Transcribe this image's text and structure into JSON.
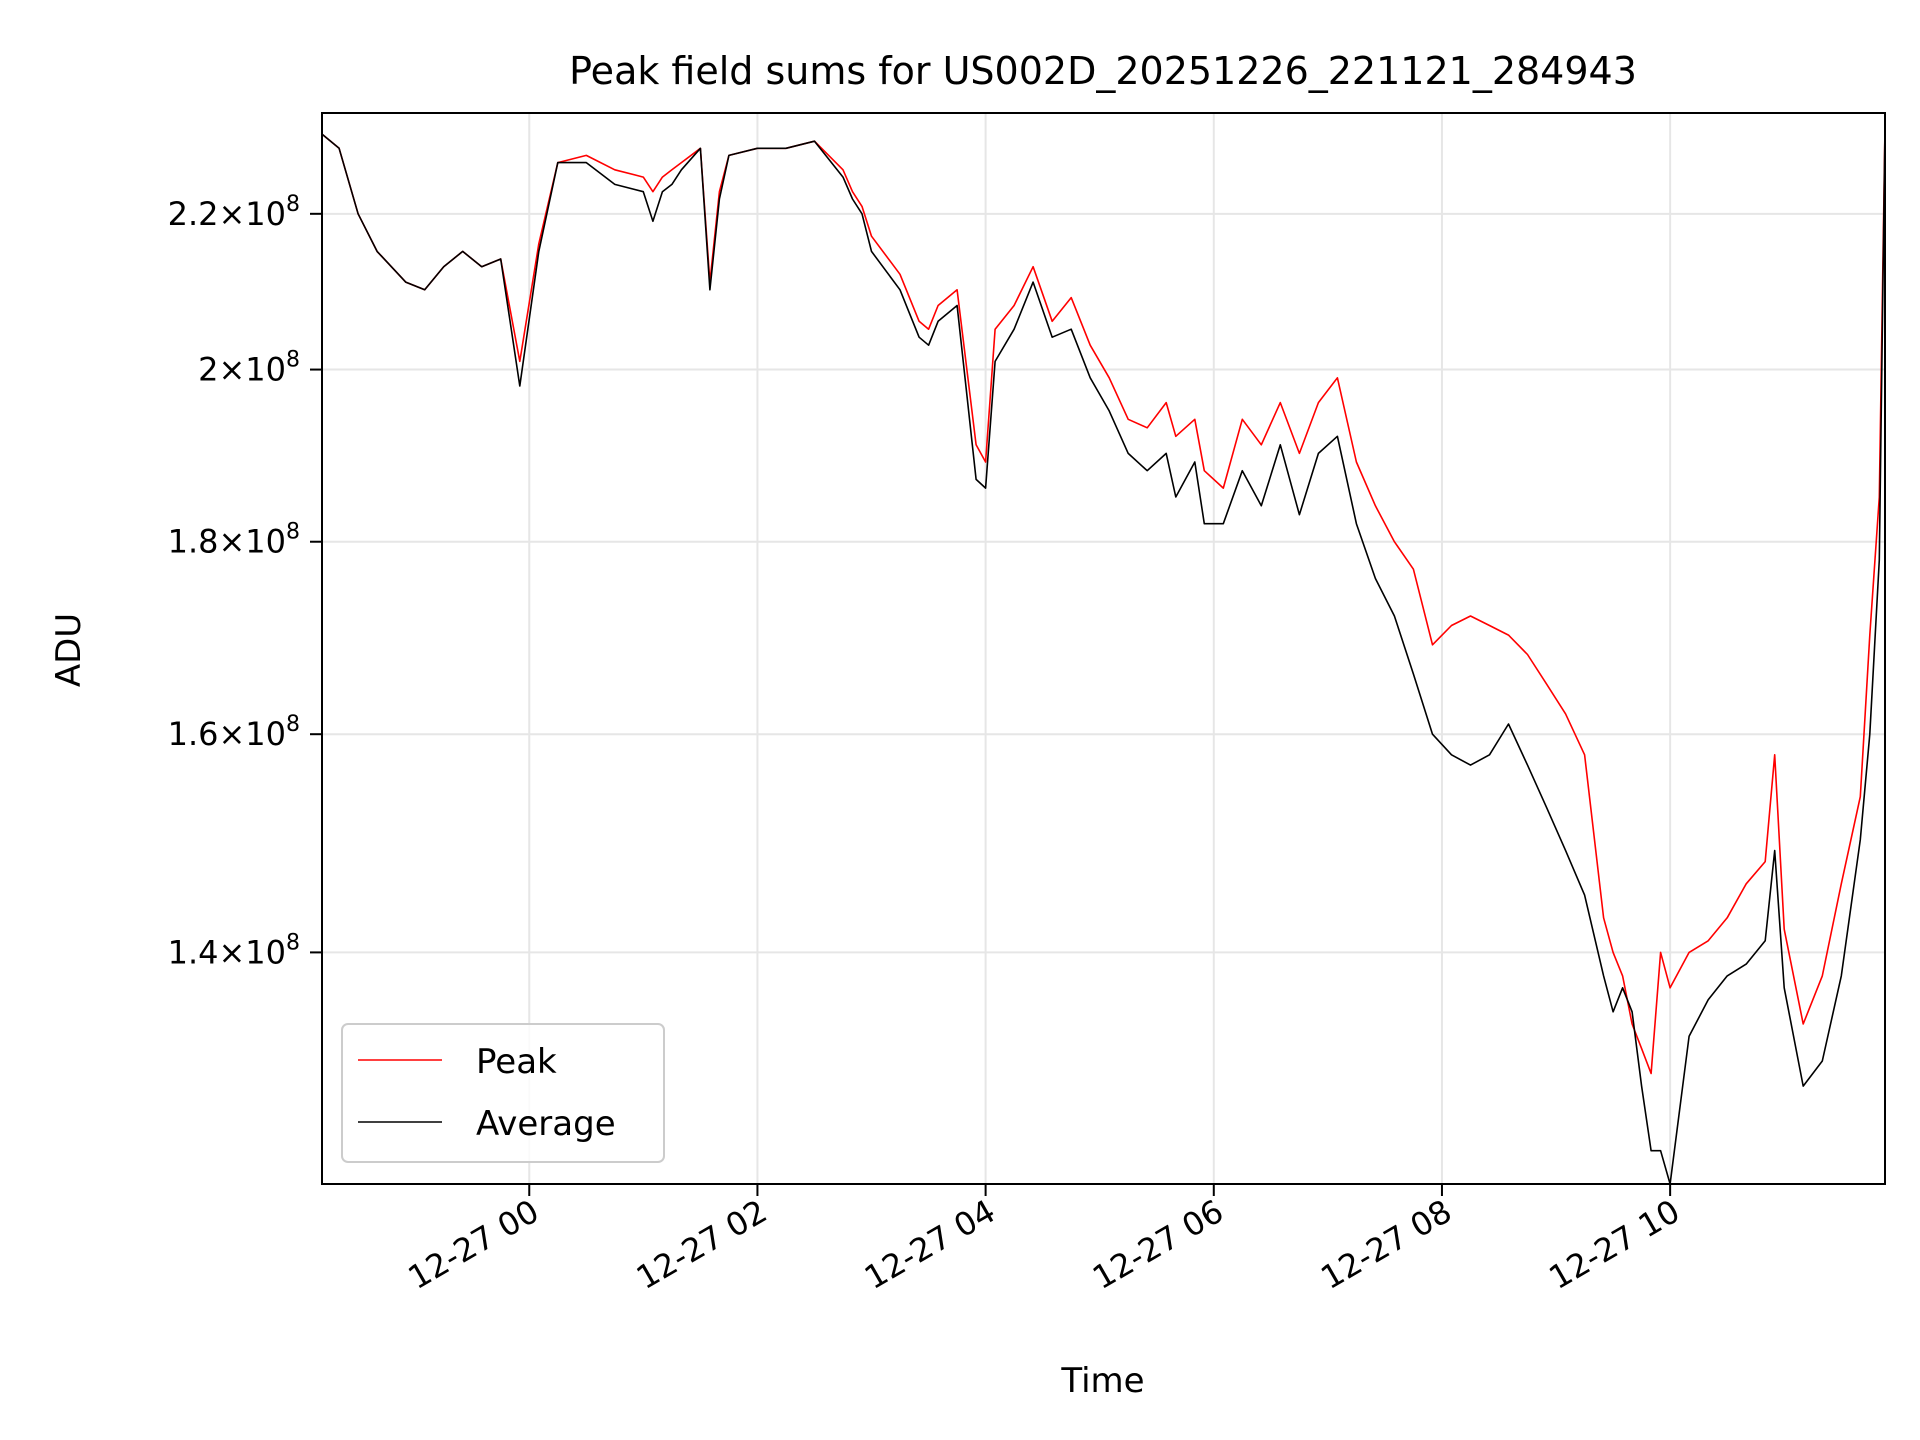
{
  "chart_data": {
    "type": "line",
    "title": "Peak field sums for US002D_20251226_221121_284943",
    "xlabel": "Time",
    "ylabel": "ADU",
    "yscale": "log",
    "grid": true,
    "legend_position": "lower-left",
    "xlim": [
      "2025-12-26 22:11",
      "2025-12-27 11:53"
    ],
    "ylim": [
      121500000,
      234000000
    ],
    "x_ticks": [
      {
        "value": "2025-12-27 00:00",
        "label": "12-27 00"
      },
      {
        "value": "2025-12-27 02:00",
        "label": "12-27 02"
      },
      {
        "value": "2025-12-27 04:00",
        "label": "12-27 04"
      },
      {
        "value": "2025-12-27 06:00",
        "label": "12-27 06"
      },
      {
        "value": "2025-12-27 08:00",
        "label": "12-27 08"
      },
      {
        "value": "2025-12-27 10:00",
        "label": "12-27 10"
      }
    ],
    "y_ticks": [
      {
        "value": 140000000,
        "mantissa": "1.4",
        "base": "10",
        "exp": "8"
      },
      {
        "value": 160000000,
        "mantissa": "1.6",
        "base": "10",
        "exp": "8"
      },
      {
        "value": 180000000,
        "mantissa": "1.8",
        "base": "10",
        "exp": "8"
      },
      {
        "value": 200000000,
        "mantissa": "2",
        "base": "10",
        "exp": "8"
      },
      {
        "value": 220000000,
        "mantissa": "2.2",
        "base": "10",
        "exp": "8"
      }
    ],
    "x": [
      "2025-12-26 22:11",
      "2025-12-26 22:20",
      "2025-12-26 22:30",
      "2025-12-26 22:40",
      "2025-12-26 22:55",
      "2025-12-26 23:05",
      "2025-12-26 23:15",
      "2025-12-26 23:25",
      "2025-12-26 23:35",
      "2025-12-26 23:45",
      "2025-12-26 23:55",
      "2025-12-27 00:05",
      "2025-12-27 00:15",
      "2025-12-27 00:30",
      "2025-12-27 00:45",
      "2025-12-27 01:00",
      "2025-12-27 01:05",
      "2025-12-27 01:10",
      "2025-12-27 01:15",
      "2025-12-27 01:20",
      "2025-12-27 01:30",
      "2025-12-27 01:35",
      "2025-12-27 01:40",
      "2025-12-27 01:45",
      "2025-12-27 02:00",
      "2025-12-27 02:15",
      "2025-12-27 02:30",
      "2025-12-27 02:45",
      "2025-12-27 02:50",
      "2025-12-27 02:55",
      "2025-12-27 03:00",
      "2025-12-27 03:15",
      "2025-12-27 03:25",
      "2025-12-27 03:30",
      "2025-12-27 03:35",
      "2025-12-27 03:45",
      "2025-12-27 03:55",
      "2025-12-27 04:00",
      "2025-12-27 04:05",
      "2025-12-27 04:15",
      "2025-12-27 04:25",
      "2025-12-27 04:35",
      "2025-12-27 04:45",
      "2025-12-27 04:55",
      "2025-12-27 05:05",
      "2025-12-27 05:15",
      "2025-12-27 05:25",
      "2025-12-27 05:35",
      "2025-12-27 05:40",
      "2025-12-27 05:50",
      "2025-12-27 05:55",
      "2025-12-27 06:05",
      "2025-12-27 06:15",
      "2025-12-27 06:25",
      "2025-12-27 06:35",
      "2025-12-27 06:45",
      "2025-12-27 06:55",
      "2025-12-27 07:05",
      "2025-12-27 07:15",
      "2025-12-27 07:25",
      "2025-12-27 07:35",
      "2025-12-27 07:45",
      "2025-12-27 07:55",
      "2025-12-27 08:05",
      "2025-12-27 08:15",
      "2025-12-27 08:25",
      "2025-12-27 08:35",
      "2025-12-27 08:45",
      "2025-12-27 08:55",
      "2025-12-27 09:05",
      "2025-12-27 09:15",
      "2025-12-27 09:25",
      "2025-12-27 09:30",
      "2025-12-27 09:35",
      "2025-12-27 09:40",
      "2025-12-27 09:45",
      "2025-12-27 09:50",
      "2025-12-27 09:55",
      "2025-12-27 10:00",
      "2025-12-27 10:10",
      "2025-12-27 10:20",
      "2025-12-27 10:30",
      "2025-12-27 10:40",
      "2025-12-27 10:50",
      "2025-12-27 10:55",
      "2025-12-27 11:00",
      "2025-12-27 11:10",
      "2025-12-27 11:20",
      "2025-12-27 11:30",
      "2025-12-27 11:40",
      "2025-12-27 11:45",
      "2025-12-27 11:50",
      "2025-12-27 11:53"
    ],
    "series": [
      {
        "name": "Peak",
        "color": "#ff0000",
        "values": [
          231000000,
          229000000,
          220000000,
          215000000,
          211000000,
          210000000,
          213000000,
          215000000,
          213000000,
          214000000,
          201000000,
          216000000,
          227000000,
          228000000,
          226000000,
          225000000,
          223000000,
          225000000,
          226000000,
          227000000,
          229000000,
          211000000,
          223000000,
          228000000,
          229000000,
          229000000,
          230000000,
          226000000,
          223000000,
          221000000,
          217000000,
          212000000,
          206000000,
          205000000,
          208000000,
          210000000,
          191000000,
          189000000,
          205000000,
          208000000,
          213000000,
          206000000,
          209000000,
          203000000,
          199000000,
          194000000,
          193000000,
          196000000,
          192000000,
          194000000,
          188000000,
          186000000,
          194000000,
          191000000,
          196000000,
          190000000,
          196000000,
          199000000,
          189000000,
          184000000,
          180000000,
          177000000,
          169000000,
          171000000,
          172000000,
          171000000,
          170000000,
          168000000,
          165000000,
          162000000,
          158000000,
          143000000,
          140000000,
          138000000,
          134000000,
          132000000,
          130000000,
          140000000,
          137000000,
          140000000,
          141000000,
          143000000,
          146000000,
          148000000,
          158000000,
          142000000,
          134000000,
          138000000,
          146000000,
          154000000,
          170000000,
          185000000,
          232000000
        ]
      },
      {
        "name": "Average",
        "color": "#000000",
        "values": [
          231000000,
          229000000,
          220000000,
          215000000,
          211000000,
          210000000,
          213000000,
          215000000,
          213000000,
          214000000,
          198000000,
          215000000,
          227000000,
          227000000,
          224000000,
          223000000,
          219000000,
          223000000,
          224000000,
          226000000,
          229000000,
          210000000,
          222000000,
          228000000,
          229000000,
          229000000,
          230000000,
          225000000,
          222000000,
          220000000,
          215000000,
          210000000,
          204000000,
          203000000,
          206000000,
          208000000,
          187000000,
          186000000,
          201000000,
          205000000,
          211000000,
          204000000,
          205000000,
          199000000,
          195000000,
          190000000,
          188000000,
          190000000,
          185000000,
          189000000,
          182000000,
          182000000,
          188000000,
          184000000,
          191000000,
          183000000,
          190000000,
          192000000,
          182000000,
          176000000,
          172000000,
          166000000,
          160000000,
          158000000,
          157000000,
          158000000,
          161000000,
          157000000,
          153000000,
          149000000,
          145000000,
          138000000,
          135000000,
          137000000,
          135000000,
          129000000,
          124000000,
          124000000,
          121500000,
          133000000,
          136000000,
          138000000,
          139000000,
          141000000,
          149000000,
          137000000,
          129000000,
          131000000,
          138000000,
          150000000,
          160000000,
          178000000,
          232000000
        ]
      }
    ]
  }
}
